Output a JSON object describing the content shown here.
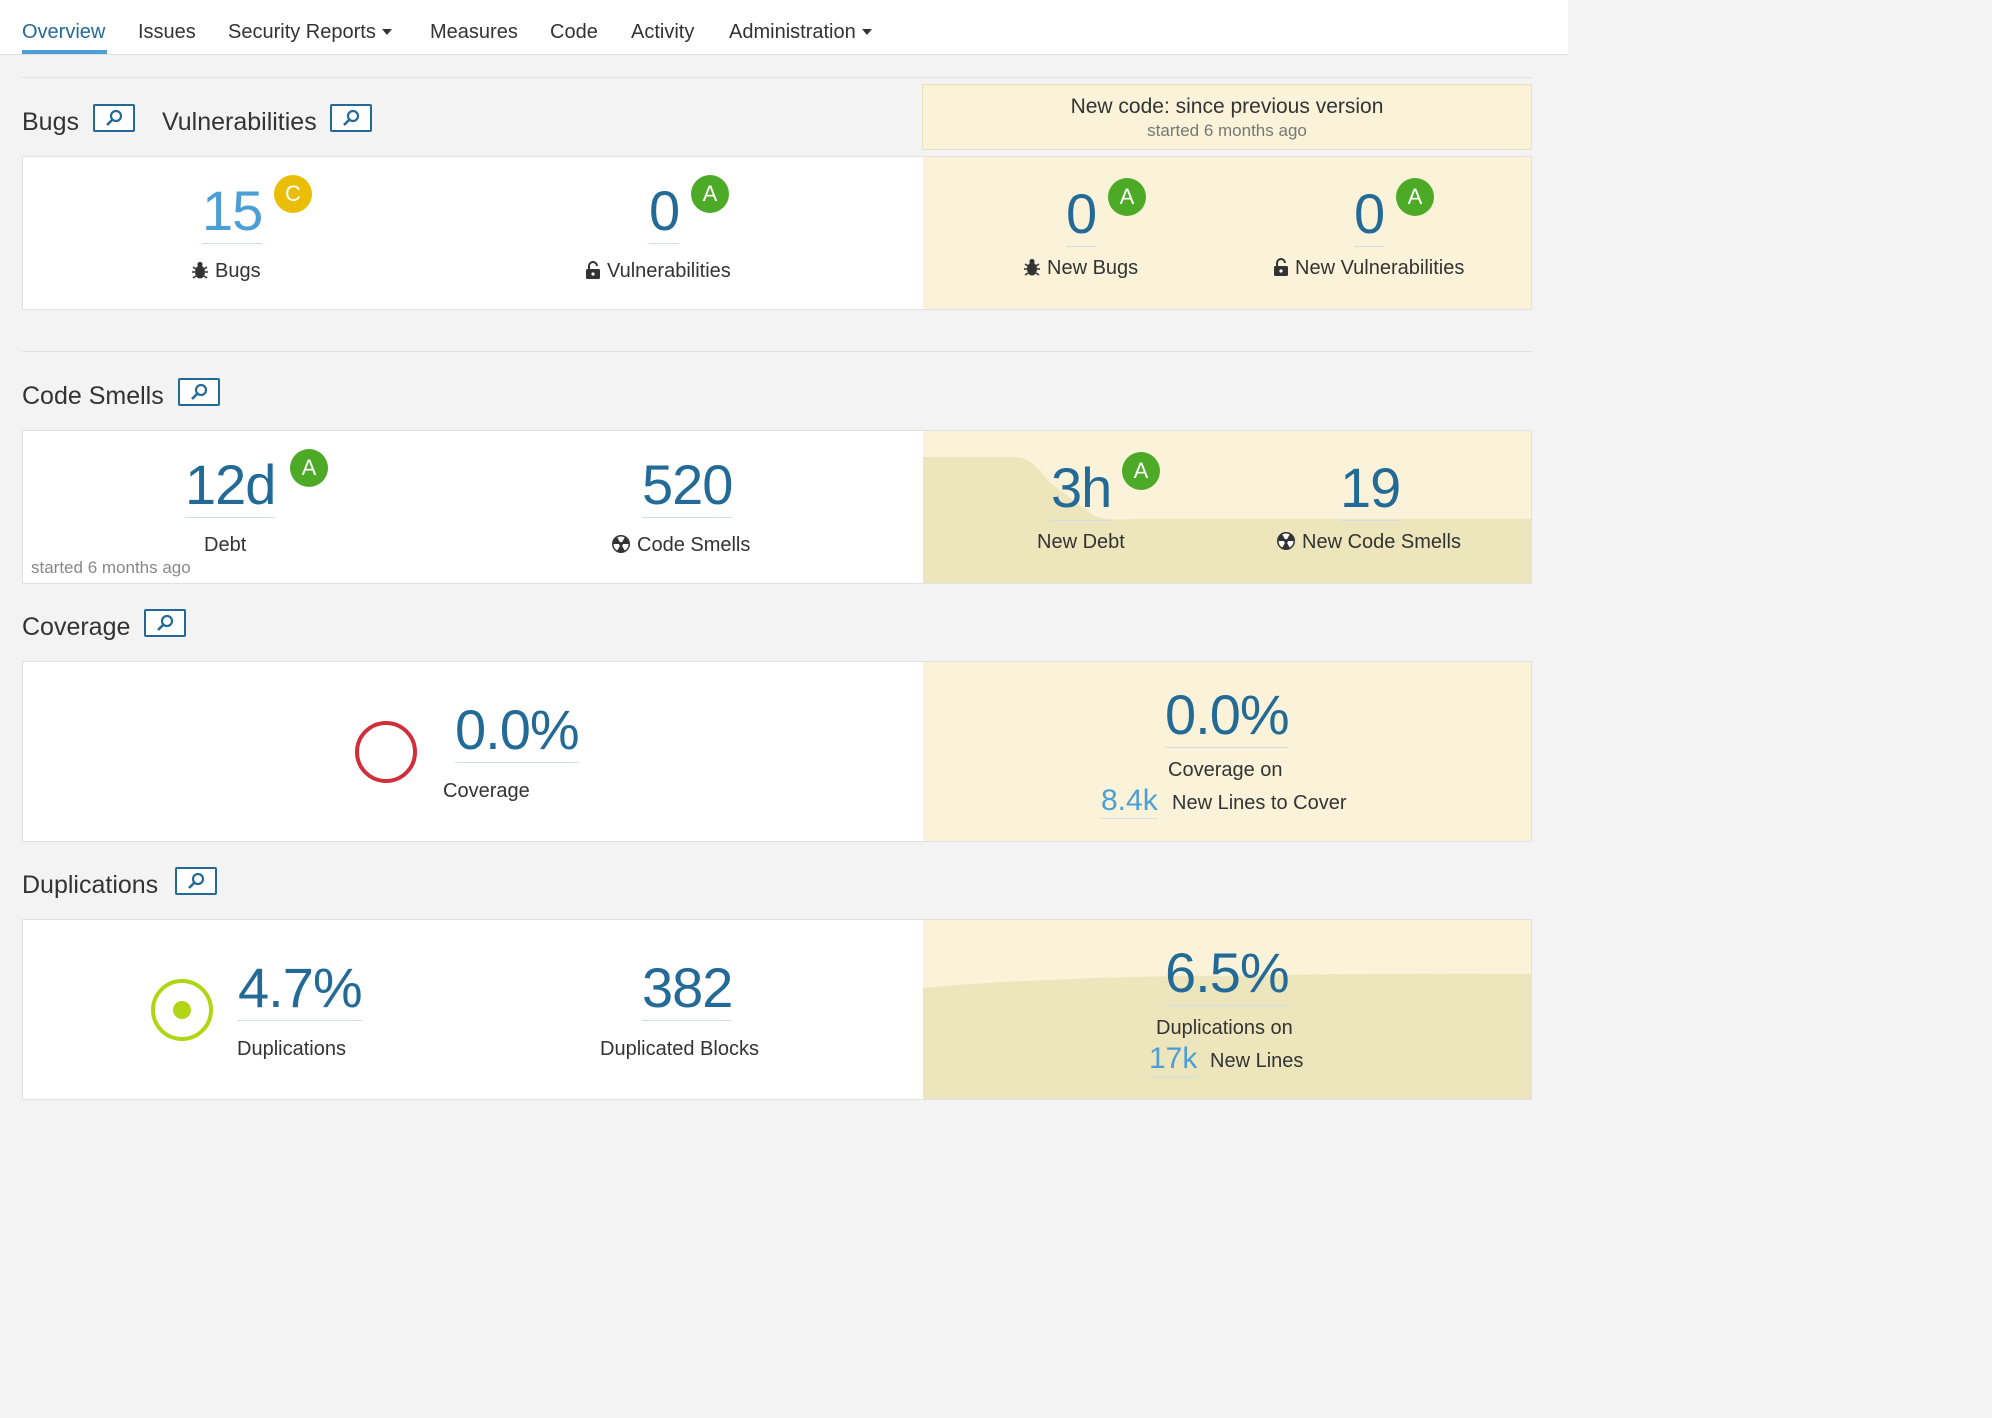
{
  "nav": {
    "items": [
      {
        "label": "Overview",
        "active": true
      },
      {
        "label": "Issues"
      },
      {
        "label": "Security Reports",
        "dropdown": true
      },
      {
        "label": "Measures"
      },
      {
        "label": "Code"
      },
      {
        "label": "Activity"
      },
      {
        "label": "Administration",
        "dropdown": true
      }
    ]
  },
  "new_code": {
    "title": "New code: since previous version",
    "subtitle": "started 6 months ago"
  },
  "bugs_section": {
    "bugs_title": "Bugs",
    "vulns_title": "Vulnerabilities",
    "bugs": {
      "value": "15",
      "rating": "C",
      "label": "Bugs"
    },
    "vulnerabilities": {
      "value": "0",
      "rating": "A",
      "label": "Vulnerabilities"
    },
    "new_bugs": {
      "value": "0",
      "rating": "A",
      "label": "New Bugs"
    },
    "new_vulnerabilities": {
      "value": "0",
      "rating": "A",
      "label": "New Vulnerabilities"
    }
  },
  "smells_section": {
    "title": "Code Smells",
    "debt": {
      "value": "12d",
      "rating": "A",
      "label": "Debt",
      "note": "started 6 months ago"
    },
    "smells": {
      "value": "520",
      "label": "Code Smells"
    },
    "new_debt": {
      "value": "3h",
      "rating": "A",
      "label": "New Debt"
    },
    "new_smells": {
      "value": "19",
      "label": "New Code Smells"
    }
  },
  "coverage_section": {
    "title": "Coverage",
    "coverage": {
      "value": "0.0%",
      "label": "Coverage"
    },
    "new_coverage": {
      "value": "0.0%",
      "label": "Coverage on",
      "lines_value": "8.4k",
      "lines_label": "New Lines to Cover"
    }
  },
  "duplications_section": {
    "title": "Duplications",
    "duplications": {
      "value": "4.7%",
      "label": "Duplications"
    },
    "blocks": {
      "value": "382",
      "label": "Duplicated Blocks"
    },
    "new_duplications": {
      "value": "6.5%",
      "label": "Duplications on",
      "lines_value": "17k",
      "lines_label": "New Lines"
    }
  },
  "colors": {
    "rating_a": "#4caa26",
    "rating_c": "#eabe06",
    "link": "#236a97",
    "leak_bg": "#faf3d9"
  }
}
